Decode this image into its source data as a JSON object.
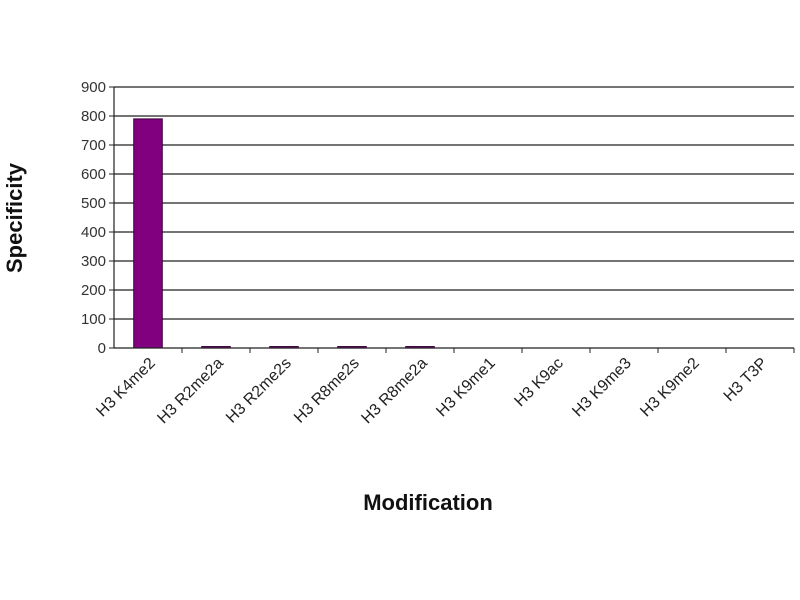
{
  "chart_data": {
    "type": "bar",
    "title": "",
    "xlabel": "Modification",
    "ylabel": "Specificity",
    "categories": [
      "H3 K4me2",
      "H3 R2me2a",
      "H3 R2me2s",
      "H3 R8me2s",
      "H3 R8me2a",
      "H3 K9me1",
      "H3 K9ac",
      "H3 K9me3",
      "H3 K9me2",
      "H3 T3P"
    ],
    "values": [
      790,
      5,
      5,
      5,
      5,
      0,
      0,
      0,
      0,
      0
    ],
    "ylim": [
      0,
      900
    ],
    "yticks": [
      0,
      100,
      200,
      300,
      400,
      500,
      600,
      700,
      800,
      900
    ],
    "grid": true,
    "legend": "none",
    "colors": {
      "bar": "#800080",
      "bar_edge": "#3a003a",
      "grid": "#000000"
    }
  }
}
